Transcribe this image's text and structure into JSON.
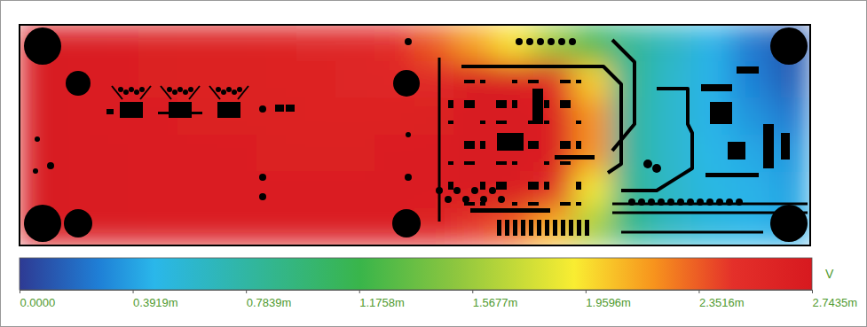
{
  "chart_data": {
    "type": "heatmap",
    "tick_labels": false,
    "cells": [
      [
        2.72,
        2.7,
        2.68,
        2.66,
        2.64,
        2.63,
        2.62,
        2.6,
        2.58,
        2.52,
        2.35,
        2.15,
        1.95,
        1.55,
        1.15,
        0.85,
        0.65,
        0.45,
        0.25,
        0.12
      ],
      [
        2.72,
        2.7,
        2.68,
        2.66,
        2.64,
        2.63,
        2.62,
        2.61,
        2.6,
        2.58,
        2.55,
        2.7,
        2.7,
        2.55,
        2.0,
        0.85,
        0.6,
        0.45,
        0.28,
        0.15
      ],
      [
        2.72,
        2.7,
        2.68,
        2.67,
        2.65,
        2.64,
        2.63,
        2.62,
        2.62,
        2.62,
        2.65,
        2.72,
        2.72,
        2.68,
        2.2,
        0.8,
        0.6,
        0.45,
        0.35,
        0.25
      ],
      [
        2.72,
        2.71,
        2.7,
        2.69,
        2.68,
        2.67,
        2.66,
        2.66,
        2.66,
        2.67,
        2.68,
        2.72,
        2.72,
        2.68,
        2.2,
        0.8,
        0.6,
        0.48,
        0.42,
        0.35
      ],
      [
        2.72,
        2.71,
        2.7,
        2.69,
        2.68,
        2.68,
        2.67,
        2.67,
        2.67,
        2.68,
        2.68,
        2.72,
        2.7,
        2.55,
        1.9,
        0.85,
        0.62,
        0.5,
        0.45,
        0.4
      ],
      [
        2.72,
        2.71,
        2.7,
        2.69,
        2.69,
        2.68,
        2.68,
        2.68,
        2.68,
        2.68,
        2.62,
        2.45,
        2.35,
        2.1,
        1.6,
        0.9,
        0.65,
        0.52,
        0.46,
        0.42
      ]
    ],
    "colorbar_range": [
      0,
      2.7435
    ],
    "colorbar_ticks": [
      {
        "value": 0,
        "label": "0.0000"
      },
      {
        "value": 0.3919,
        "label": "0.3919m"
      },
      {
        "value": 0.7839,
        "label": "0.7839m"
      },
      {
        "value": 1.1758,
        "label": "1.1758m"
      },
      {
        "value": 1.5677,
        "label": "1.5677m"
      },
      {
        "value": 1.9596,
        "label": "1.9596m"
      },
      {
        "value": 2.3516,
        "label": "2.3516m"
      },
      {
        "value": 2.7435,
        "label": "2.7435m"
      }
    ],
    "colorbar_label": "V"
  }
}
